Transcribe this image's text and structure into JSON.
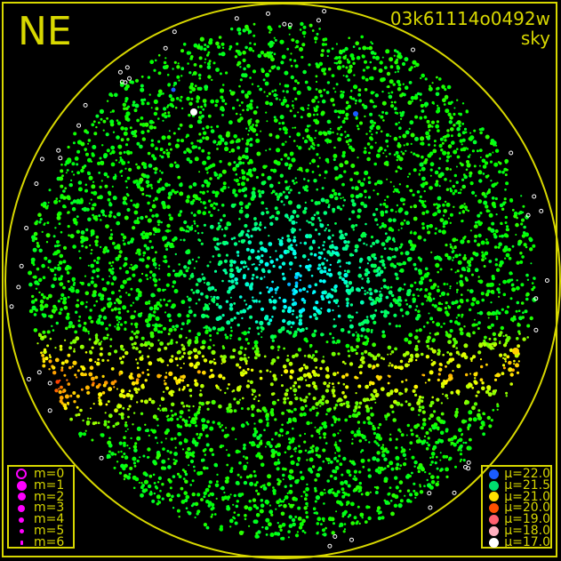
{
  "direction_label": "NE",
  "frame_id": "03k61114o0492w",
  "frame_type": "sky",
  "colors": {
    "frame": "#d8d800",
    "background": "#000000",
    "magnitude_symbol": "#ff00ff"
  },
  "magnitude_legend": [
    {
      "label": "m=0",
      "size": 0
    },
    {
      "label": "m=1",
      "size": 1
    },
    {
      "label": "m=2",
      "size": 2
    },
    {
      "label": "m=3",
      "size": 3
    },
    {
      "label": "m=4",
      "size": 4
    },
    {
      "label": "m=5",
      "size": 5
    },
    {
      "label": "m=6",
      "size": 6
    }
  ],
  "sky_brightness_legend": [
    {
      "label": "μ=22.0",
      "color": "#1a5cff"
    },
    {
      "label": "μ=21.5",
      "color": "#00e070"
    },
    {
      "label": "μ=21.0",
      "color": "#ffe000"
    },
    {
      "label": "μ=20.0",
      "color": "#ff5000"
    },
    {
      "label": "μ=19.0",
      "color": "#ff6070"
    },
    {
      "label": "μ=18.0",
      "color": "#ffb0c0"
    },
    {
      "label": "μ=17.0",
      "color": "#ffffff"
    }
  ]
}
